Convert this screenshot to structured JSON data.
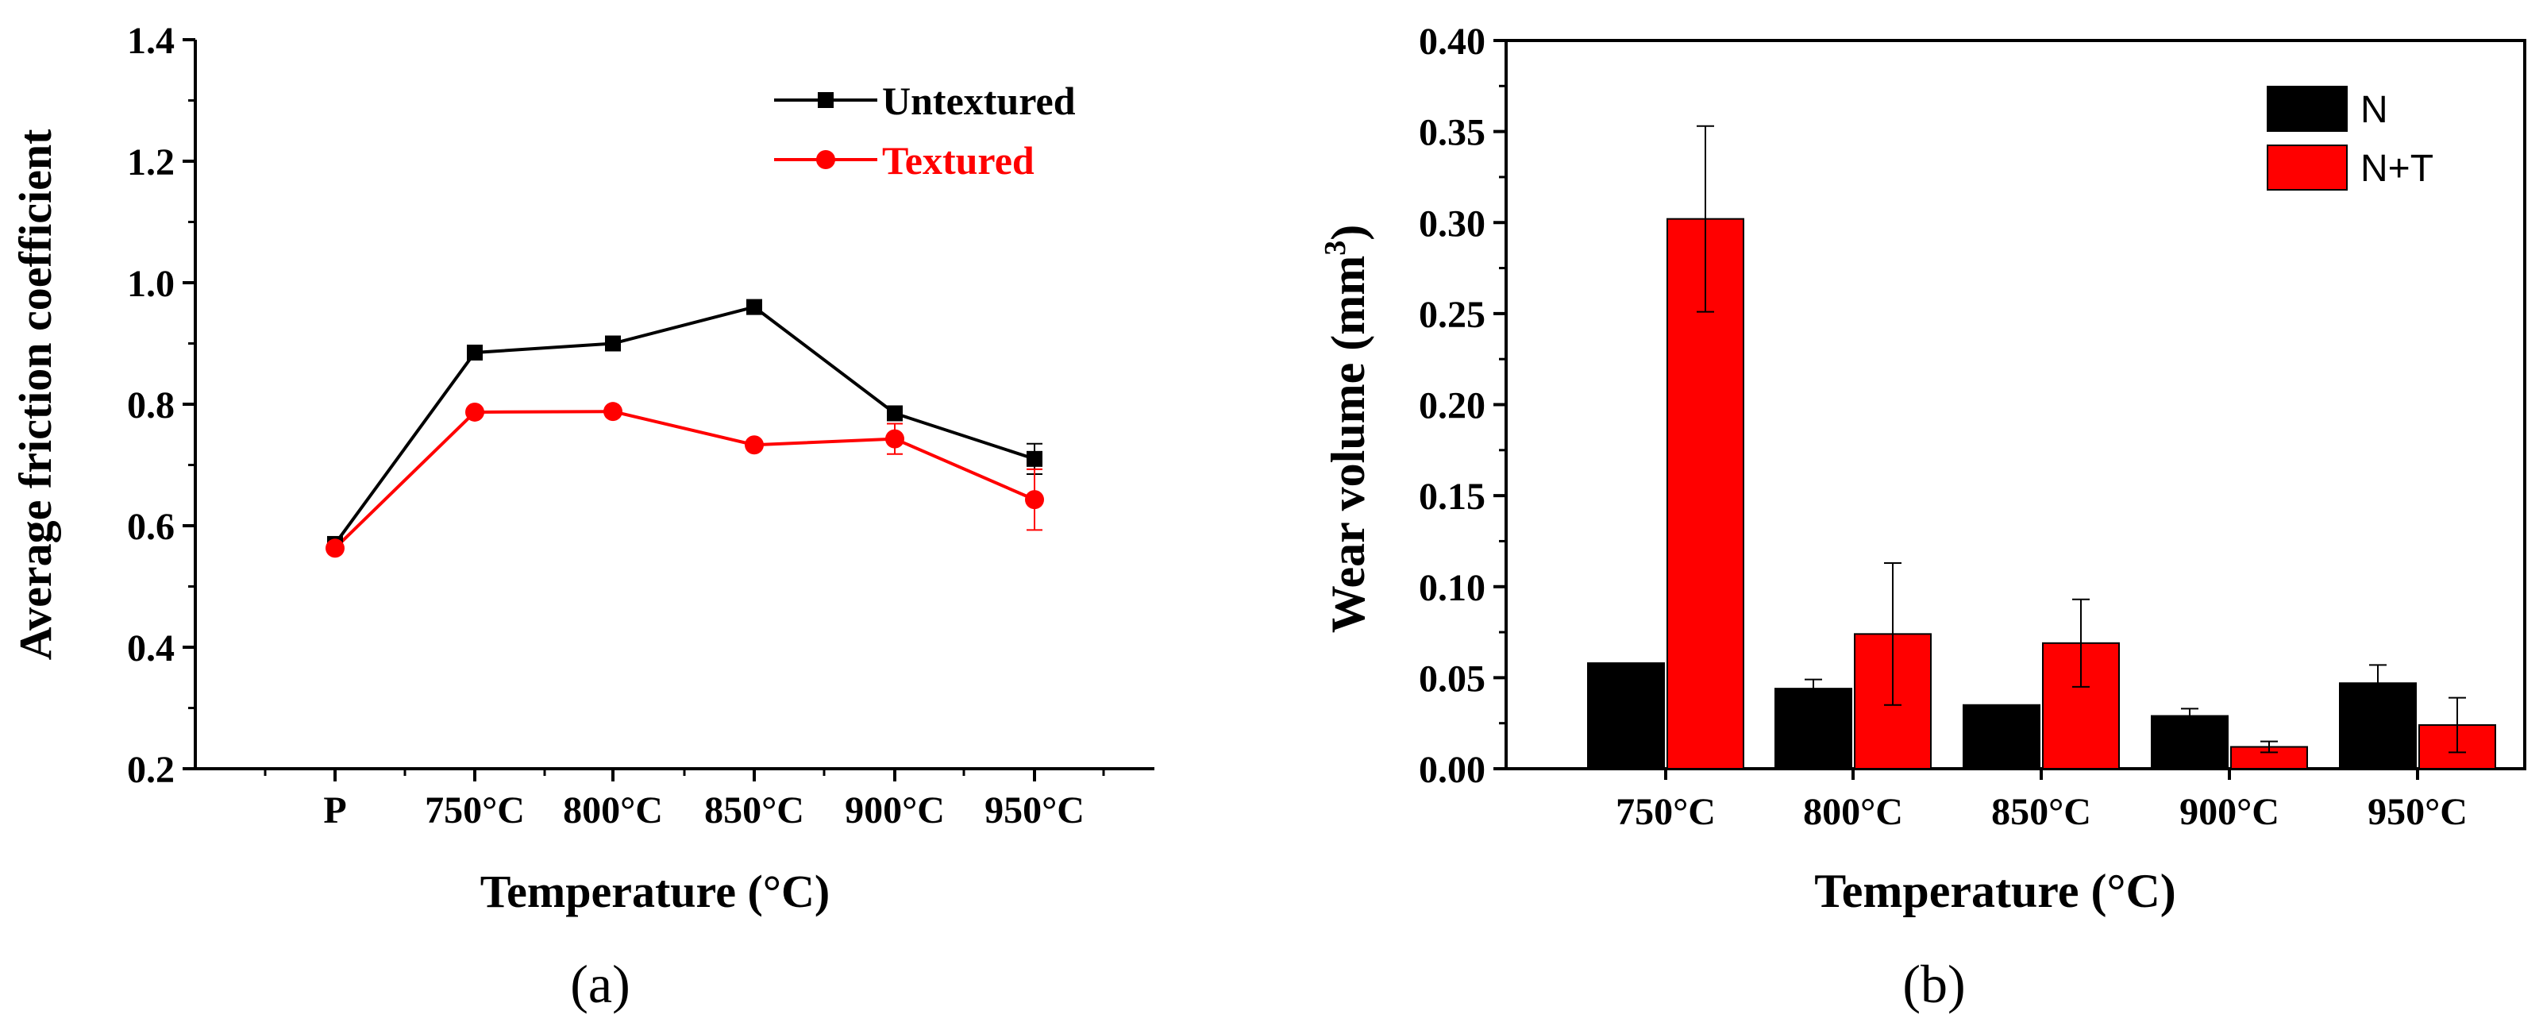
{
  "colors": {
    "untextured": "#000000",
    "textured": "#ff0000",
    "bar_n": "#000000",
    "bar_nt": "#ff0000",
    "axis": "#000000"
  },
  "chart_data": [
    {
      "id": "a",
      "type": "line",
      "panel_label": "(a)",
      "title": "",
      "xlabel": "Temperature (°C)",
      "ylabel": "Average friction coefficient",
      "categories": [
        "P",
        "750°C",
        "800°C",
        "850°C",
        "900°C",
        "950°C"
      ],
      "ylim": [
        0.2,
        1.4
      ],
      "yticks": [
        "0.2",
        "0.4",
        "0.6",
        "0.8",
        "1.0",
        "1.2",
        "1.4"
      ],
      "legend_position": "top-right",
      "grid": false,
      "series": [
        {
          "name": "Untextured",
          "marker": "square",
          "values": [
            0.57,
            0.885,
            0.9,
            0.96,
            0.785,
            0.71
          ],
          "errors": [
            0.005,
            0.005,
            0.005,
            0.005,
            0.005,
            0.025
          ]
        },
        {
          "name": "Textured",
          "marker": "circle",
          "values": [
            0.563,
            0.787,
            0.788,
            0.733,
            0.743,
            0.643
          ],
          "errors": [
            0.005,
            0.005,
            0.005,
            0.005,
            0.025,
            0.05
          ]
        }
      ]
    },
    {
      "id": "b",
      "type": "bar",
      "panel_label": "(b)",
      "title": "",
      "xlabel": "Temperature (°C)",
      "ylabel": "Wear volume (mm",
      "ylabel_sup": "3",
      "ylabel_end": ")",
      "categories": [
        "750°C",
        "800°C",
        "850°C",
        "900°C",
        "950°C"
      ],
      "ylim": [
        0.0,
        0.4
      ],
      "yticks": [
        "0.00",
        "0.05",
        "0.10",
        "0.15",
        "0.20",
        "0.25",
        "0.30",
        "0.35",
        "0.40"
      ],
      "legend_position": "top-right",
      "grid": false,
      "series": [
        {
          "name": "N",
          "values": [
            0.058,
            0.044,
            0.035,
            0.029,
            0.047
          ],
          "errors": [
            0.0,
            0.005,
            0.0,
            0.004,
            0.01
          ]
        },
        {
          "name": "N+T",
          "values": [
            0.302,
            0.074,
            0.069,
            0.012,
            0.024
          ],
          "errors": [
            0.051,
            0.039,
            0.024,
            0.003,
            0.015
          ]
        }
      ]
    }
  ]
}
